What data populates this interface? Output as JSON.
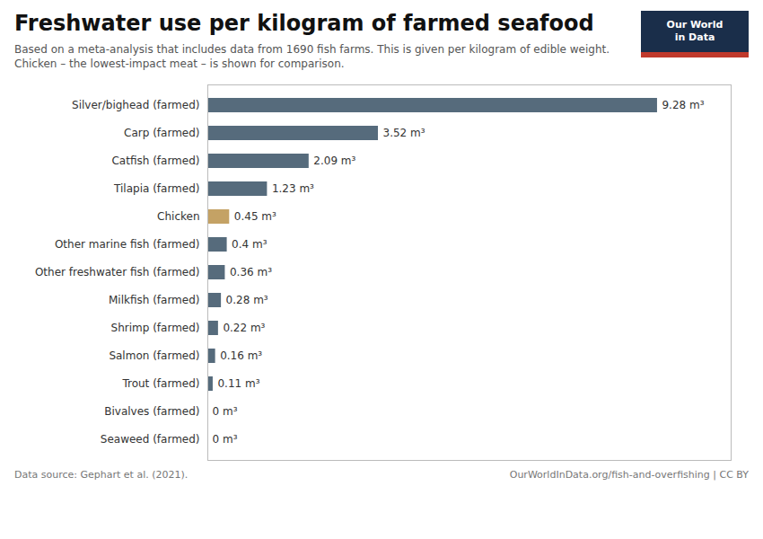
{
  "chart_data": {
    "type": "bar",
    "orientation": "horizontal",
    "title": "Freshwater use per kilogram of farmed seafood",
    "subtitle": [
      "Based on a meta-analysis that includes data from 1690 fish farms. This is given per kilogram of edible weight.",
      "Chicken – the lowest-impact meat – is shown for comparison."
    ],
    "annotations": [
      "Our World",
      "in Data",
      "Data source: Gephart et al. (2021).",
      "OurWorldInData.org/fish-and-overfishing | CC BY"
    ],
    "categories": [
      "Silver/bighead (farmed)",
      "Carp (farmed)",
      "Catfish (farmed)",
      "Tilapia (farmed)",
      "Chicken",
      "Other marine fish (farmed)",
      "Other freshwater fish (farmed)",
      "Milkfish (farmed)",
      "Shrimp (farmed)",
      "Salmon (farmed)",
      "Trout (farmed)",
      "Bivalves (farmed)",
      "Seaweed (farmed)"
    ],
    "values": [
      9.28,
      3.52,
      2.09,
      1.23,
      0.45,
      0.4,
      0.36,
      0.28,
      0.22,
      0.16,
      0.11,
      0.0,
      0.0
    ],
    "value_labels": [
      "9.28 m³",
      "3.52 m³",
      "2.09 m³",
      "1.23 m³",
      "0.45 m³",
      "0.4 m³",
      "0.36 m³",
      "0.28 m³",
      "0.22 m³",
      "0.16 m³",
      "0.11 m³",
      "0 m³",
      "0 m³"
    ],
    "colors": [
      "#566b7c",
      "#566b7c",
      "#566b7c",
      "#566b7c",
      "#c4a265",
      "#566b7c",
      "#566b7c",
      "#566b7c",
      "#566b7c",
      "#566b7c",
      "#566b7c",
      "#566b7c",
      "#566b7c"
    ],
    "xlim": [
      0,
      10.8
    ],
    "xticks": [],
    "tick_labels": "y",
    "data_labels": true,
    "grid": false
  }
}
